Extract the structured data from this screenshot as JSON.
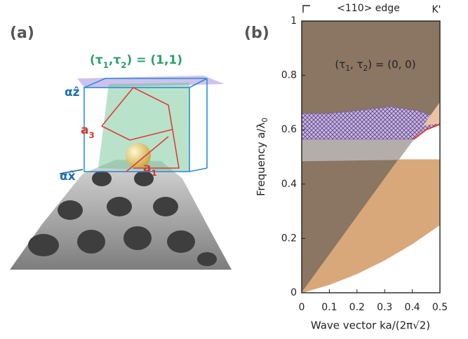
{
  "figure_a": {
    "panel_label": "(a)",
    "tau_label": [
      {
        "text": "(τ"
      },
      {
        "sub": "1"
      },
      {
        "text": ",τ"
      },
      {
        "sub": "2"
      },
      {
        "text": ") = (1,1)"
      }
    ],
    "z_label": "αẑ",
    "x_label": "αx̂",
    "a3_label": [
      {
        "text": "a"
      },
      {
        "sub": "3"
      }
    ],
    "a1_label": [
      {
        "text": "a"
      },
      {
        "sub": "1"
      }
    ]
  },
  "chart_data": {
    "type": "band-diagram",
    "panel_label": "(b)",
    "title": "<110> edge",
    "edge_label": "K'",
    "annotation": [
      {
        "text": "(τ"
      },
      {
        "sub": "1"
      },
      {
        "text": ", τ"
      },
      {
        "sub": "2"
      },
      {
        "text": ") = (0, 0)"
      }
    ],
    "y_label": [
      {
        "text": "Frequency  a/λ"
      },
      {
        "sub": "0"
      }
    ],
    "x_label": "Wave vector  ka/(2π√2)",
    "xlim": [
      0,
      0.5
    ],
    "ylim": [
      0,
      1
    ],
    "xticks": [
      0,
      0.1,
      0.2,
      0.3,
      0.4,
      0.5
    ],
    "yticks": [
      0,
      0.2,
      0.4,
      0.6,
      0.8,
      1
    ],
    "regions": [
      {
        "color": "#8b7563",
        "x": [
          0,
          0,
          0.5,
          0.5
        ],
        "y": [
          0,
          1,
          1,
          0.7
        ]
      },
      {
        "color": "#d8a87b",
        "x": [
          0,
          0.35,
          0.5,
          0.5,
          0.4,
          0.3,
          0.2,
          0.1
        ],
        "y": [
          0,
          0.49,
          0.49,
          0.25,
          0.18,
          0.12,
          0.07,
          0.03
        ]
      },
      {
        "color": "#b3aeaa",
        "x": [
          0,
          0.35,
          0.405,
          0
        ],
        "y": [
          0.485,
          0.49,
          0.565,
          0.565
        ]
      },
      {
        "color": "#7b5fa8",
        "hatch": true,
        "x": [
          0,
          0.405,
          0.45,
          0.5,
          0.5,
          0.42,
          0.32,
          0.2,
          0.1,
          0
        ],
        "y": [
          0.565,
          0.565,
          0.6,
          0.62,
          0.64,
          0.67,
          0.685,
          0.67,
          0.66,
          0.66
        ]
      },
      {
        "color": "#e9c3a4",
        "x": [
          0.44,
          0.5,
          0.5
        ],
        "y": [
          0.615,
          0.7,
          0.625
        ]
      }
    ],
    "lines": [
      {
        "color": "#e03a2a",
        "x": [
          0.405,
          0.45,
          0.5
        ],
        "y": [
          0.565,
          0.6,
          0.62
        ]
      }
    ]
  }
}
